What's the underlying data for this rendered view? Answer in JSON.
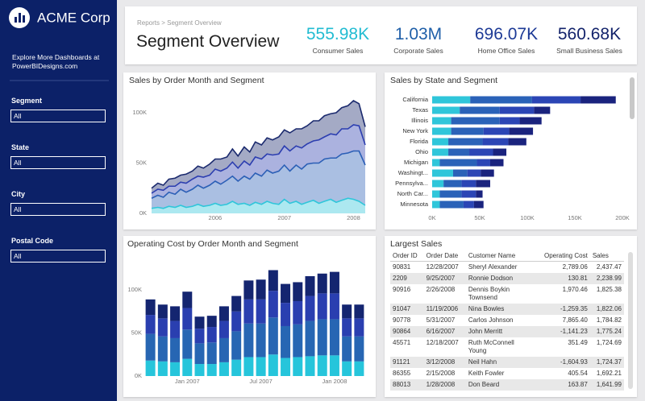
{
  "sidebar": {
    "brand": "ACME Corp",
    "promo": "Explore More Dashboards at PowerBIDesigns.com",
    "filters": [
      {
        "label": "Segment",
        "value": "All"
      },
      {
        "label": "State",
        "value": "All"
      },
      {
        "label": "City",
        "value": "All"
      },
      {
        "label": "Postal Code",
        "value": "All"
      }
    ]
  },
  "header": {
    "breadcrumb": "Reports > Segment Overview",
    "title": "Segment Overview",
    "kpis": [
      {
        "value": "555.98K",
        "label": "Consumer Sales",
        "color": "#22bcd2"
      },
      {
        "value": "1.03M",
        "label": "Corporate Sales",
        "color": "#1f5fa8"
      },
      {
        "value": "696.07K",
        "label": "Home Office Sales",
        "color": "#1d3a96"
      },
      {
        "value": "560.68K",
        "label": "Small Business Sales",
        "color": "#13236b"
      }
    ]
  },
  "chart_data": [
    {
      "type": "area",
      "stacked": true,
      "title": "Sales by Order Month and Segment",
      "x": [
        2005.08,
        2005.17,
        2005.25,
        2005.33,
        2005.42,
        2005.5,
        2005.58,
        2005.67,
        2005.75,
        2005.83,
        2005.92,
        2006.0,
        2006.08,
        2006.17,
        2006.25,
        2006.33,
        2006.42,
        2006.5,
        2006.58,
        2006.67,
        2006.75,
        2006.83,
        2006.92,
        2007.0,
        2007.08,
        2007.17,
        2007.25,
        2007.33,
        2007.42,
        2007.5,
        2007.58,
        2007.67,
        2007.75,
        2007.83,
        2007.92,
        2008.0,
        2008.08,
        2008.17
      ],
      "xlim": [
        2005.08,
        2008.17
      ],
      "xticks": [
        2006,
        2007,
        2008
      ],
      "ylim": [
        0,
        120000
      ],
      "yticks": [
        {
          "value": 0,
          "label": "0K"
        },
        {
          "value": 50000,
          "label": "50K"
        },
        {
          "value": 100000,
          "label": "100K"
        }
      ],
      "grid": false,
      "series": [
        {
          "color": "#2fc6da",
          "values": [
            5000,
            6000,
            5000,
            7000,
            6000,
            8000,
            6000,
            7000,
            9000,
            7000,
            8000,
            10000,
            8000,
            9000,
            12000,
            9000,
            10000,
            8000,
            11000,
            9000,
            12000,
            10000,
            9000,
            14000,
            10000,
            12000,
            9000,
            11000,
            13000,
            10000,
            12000,
            14000,
            11000,
            13000,
            15000,
            14000,
            12000,
            8000
          ]
        },
        {
          "color": "#2b5fb6",
          "values": [
            10000,
            12000,
            11000,
            14000,
            13000,
            16000,
            15000,
            17000,
            19000,
            18000,
            20000,
            22000,
            21000,
            24000,
            25000,
            23000,
            27000,
            26000,
            29000,
            28000,
            31000,
            30000,
            33000,
            34000,
            32000,
            36000,
            35000,
            38000,
            37000,
            40000,
            42000,
            41000,
            44000,
            46000,
            45000,
            48000,
            50000,
            40000
          ]
        },
        {
          "color": "#2c3eb0",
          "values": [
            5000,
            6000,
            7000,
            6000,
            8000,
            7000,
            9000,
            10000,
            9000,
            11000,
            10000,
            12000,
            13000,
            12000,
            14000,
            13000,
            15000,
            14000,
            16000,
            17000,
            16000,
            18000,
            17000,
            19000,
            20000,
            19000,
            21000,
            20000,
            22000,
            23000,
            22000,
            24000,
            23000,
            25000,
            24000,
            26000,
            25000,
            20000
          ]
        },
        {
          "color": "#1b2a6e",
          "values": [
            5000,
            6000,
            5000,
            7000,
            8000,
            7000,
            9000,
            8000,
            10000,
            9000,
            11000,
            10000,
            12000,
            11000,
            13000,
            12000,
            14000,
            13000,
            15000,
            14000,
            16000,
            15000,
            17000,
            16000,
            18000,
            17000,
            19000,
            18000,
            20000,
            19000,
            21000,
            20000,
            22000,
            21000,
            23000,
            24000,
            22000,
            18000
          ]
        }
      ]
    },
    {
      "type": "bar",
      "stacked": true,
      "horizontal": true,
      "title": "Sales by State and Segment",
      "categories": [
        "California",
        "Texas",
        "Illinois",
        "New York",
        "Florida",
        "Ohio",
        "Michigan",
        "Washingt...",
        "Pennsylva...",
        "North Car...",
        "Minnesota"
      ],
      "xlim": [
        0,
        200000
      ],
      "xticks": [
        {
          "value": 0,
          "label": "0K"
        },
        {
          "value": 50000,
          "label": "50K"
        },
        {
          "value": 100000,
          "label": "100K"
        },
        {
          "value": 150000,
          "label": "150K"
        },
        {
          "value": 200000,
          "label": "200K"
        }
      ],
      "series": [
        {
          "color": "#2fc6da",
          "values": [
            40000,
            29000,
            20000,
            20000,
            17000,
            17000,
            8000,
            22000,
            12000,
            8000,
            8000
          ]
        },
        {
          "color": "#2a62b8",
          "values": [
            65000,
            42000,
            51000,
            34000,
            36000,
            22000,
            39000,
            15000,
            19000,
            23000,
            25000
          ]
        },
        {
          "color": "#2b45b5",
          "values": [
            51000,
            36000,
            21000,
            27000,
            27000,
            25000,
            14000,
            14000,
            15000,
            15000,
            11000
          ]
        },
        {
          "color": "#1a237e",
          "values": [
            37000,
            17000,
            23000,
            25000,
            19000,
            14000,
            14000,
            14000,
            15000,
            7000,
            10000
          ]
        }
      ]
    },
    {
      "type": "bar",
      "stacked": true,
      "horizontal": false,
      "title": "Operating Cost by Order Month and Segment",
      "categories": [
        null,
        null,
        null,
        "Jan 2007",
        null,
        null,
        null,
        null,
        null,
        "Jul 2007",
        null,
        null,
        null,
        null,
        null,
        "Jan 2008",
        null,
        null
      ],
      "ylim": [
        0,
        130000
      ],
      "yticks": [
        {
          "value": 0,
          "label": "0K"
        },
        {
          "value": 50000,
          "label": "50K"
        },
        {
          "value": 100000,
          "label": "100K"
        }
      ],
      "series": [
        {
          "color": "#26c5db",
          "values": [
            18000,
            17000,
            16000,
            20000,
            14000,
            14000,
            16000,
            19000,
            22000,
            22000,
            25000,
            21000,
            22000,
            23000,
            24000,
            24000,
            17000,
            17000
          ]
        },
        {
          "color": "#2766b3",
          "values": [
            31000,
            29000,
            28000,
            34000,
            24000,
            25000,
            28000,
            33000,
            39000,
            39000,
            43000,
            37000,
            38000,
            41000,
            42000,
            42000,
            29000,
            29000
          ]
        },
        {
          "color": "#2a3fb0",
          "values": [
            22000,
            21000,
            20000,
            25000,
            17000,
            18000,
            20000,
            23000,
            28000,
            28000,
            31000,
            27000,
            27000,
            29000,
            30000,
            30000,
            21000,
            21000
          ]
        },
        {
          "color": "#142570",
          "values": [
            18000,
            16000,
            17000,
            19000,
            14000,
            13000,
            17000,
            18000,
            22000,
            23000,
            24000,
            22000,
            22000,
            23000,
            23000,
            25000,
            16000,
            16000
          ]
        }
      ]
    }
  ],
  "table": {
    "title": "Largest Sales",
    "columns": [
      "Order ID",
      "Order Date",
      "Customer Name",
      "Operating Cost",
      "Sales"
    ],
    "rows": [
      [
        "90831",
        "12/28/2007",
        "Sheryl Alexander",
        "2,789.06",
        "2,437.47"
      ],
      [
        "2209",
        "9/25/2007",
        "Ronnie Dodson",
        "130.81",
        "2,238.99"
      ],
      [
        "90916",
        "2/26/2008",
        "Dennis Boykin Townsend",
        "1,970.46",
        "1,825.38"
      ],
      [
        "91047",
        "11/19/2006",
        "Nina Bowles",
        "-1,259.35",
        "1,822.06"
      ],
      [
        "90778",
        "5/31/2007",
        "Carlos Johnson",
        "7,865.40",
        "1,784.82"
      ],
      [
        "90864",
        "6/16/2007",
        "John Merritt",
        "-1,141.23",
        "1,775.24"
      ],
      [
        "45571",
        "12/18/2007",
        "Ruth McConnell Young",
        "351.49",
        "1,724.69"
      ],
      [
        "91121",
        "3/12/2008",
        "Neil Hahn",
        "-1,604.93",
        "1,724.37"
      ],
      [
        "86355",
        "2/15/2008",
        "Keith Fowler",
        "405.54",
        "1,692.21"
      ],
      [
        "88013",
        "1/28/2008",
        "Don Beard",
        "163.87",
        "1,641.99"
      ]
    ]
  }
}
